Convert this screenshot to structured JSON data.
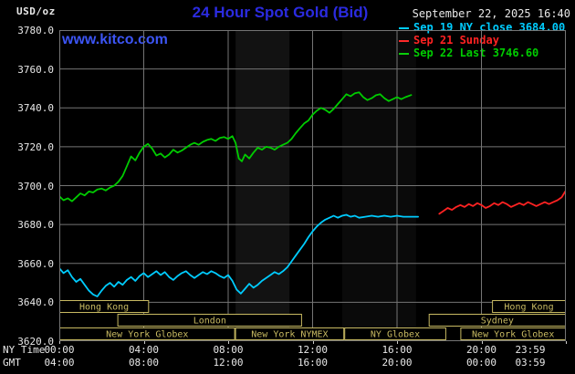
{
  "header": {
    "unit_label": "USD/oz",
    "title": "24 Hour Spot Gold (Bid)",
    "datetime": "September 22, 2025 16:40",
    "watermark": "www.kitco.com"
  },
  "legend": {
    "items": [
      {
        "label": "Sep 19 NY close 3684.00",
        "color": "#00ccff"
      },
      {
        "label": "Sep 21 Sunday",
        "color": "#ff2222"
      },
      {
        "label": "Sep 22 Last 3746.60",
        "color": "#00cc00"
      }
    ]
  },
  "axes": {
    "ny_time_label": "NY Time",
    "gmt_label": "GMT"
  },
  "colors": {
    "grid_grey": "#757575",
    "session_khaki": "#c8ba62",
    "title_blue": "#2b2be0",
    "watermark_blue": "#3c55f5",
    "axis_text": "#e8e8e8",
    "background": "#000000"
  },
  "chart_data": {
    "type": "line",
    "title": "24 Hour Spot Gold (Bid)",
    "x_unit": "NY time (hours)",
    "xlim": [
      0,
      24
    ],
    "ylim": [
      3620,
      3780
    ],
    "x_gridline_hours": [
      0,
      4,
      8,
      12,
      16,
      20,
      24
    ],
    "x_tick_labels_ny": [
      "00:00",
      "04:00",
      "08:00",
      "12:00",
      "16:00",
      "20:00",
      "23:59"
    ],
    "x_tick_labels_gmt": [
      "04:00",
      "08:00",
      "12:00",
      "16:00",
      "20:00",
      "00:00",
      "03:59"
    ],
    "y_gridlines": [
      3620,
      3640,
      3660,
      3680,
      3700,
      3720,
      3740,
      3760,
      3780
    ],
    "y_tick_labels": [
      "3780.0",
      "3760.0",
      "3740.0",
      "3720.0",
      "3700.0",
      "3680.0",
      "3660.0",
      "3640.0",
      "3620.0"
    ],
    "series": [
      {
        "name": "Sep 19 NY close 3684.00",
        "color": "#00ccff",
        "points": [
          [
            0,
            3657.5
          ],
          [
            0.2,
            3655
          ],
          [
            0.4,
            3656.5
          ],
          [
            0.6,
            3653
          ],
          [
            0.8,
            3650.5
          ],
          [
            1,
            3652
          ],
          [
            1.2,
            3649
          ],
          [
            1.4,
            3646
          ],
          [
            1.6,
            3644
          ],
          [
            1.8,
            3643
          ],
          [
            2,
            3646
          ],
          [
            2.2,
            3648.5
          ],
          [
            2.4,
            3650
          ],
          [
            2.6,
            3648
          ],
          [
            2.8,
            3650.5
          ],
          [
            3,
            3649
          ],
          [
            3.2,
            3651.5
          ],
          [
            3.4,
            3653
          ],
          [
            3.6,
            3651
          ],
          [
            3.8,
            3653.5
          ],
          [
            4,
            3655
          ],
          [
            4.2,
            3653
          ],
          [
            4.4,
            3654.5
          ],
          [
            4.6,
            3656
          ],
          [
            4.8,
            3654
          ],
          [
            5,
            3655.5
          ],
          [
            5.2,
            3653
          ],
          [
            5.4,
            3651.5
          ],
          [
            5.6,
            3653.5
          ],
          [
            5.8,
            3655
          ],
          [
            6,
            3656
          ],
          [
            6.2,
            3654
          ],
          [
            6.4,
            3652.5
          ],
          [
            6.6,
            3654
          ],
          [
            6.8,
            3655.5
          ],
          [
            7,
            3654.5
          ],
          [
            7.2,
            3656
          ],
          [
            7.4,
            3655
          ],
          [
            7.6,
            3653.5
          ],
          [
            7.8,
            3652.5
          ],
          [
            8,
            3654
          ],
          [
            8.2,
            3651
          ],
          [
            8.4,
            3646.5
          ],
          [
            8.6,
            3644.5
          ],
          [
            8.8,
            3647
          ],
          [
            9,
            3649.5
          ],
          [
            9.2,
            3647.5
          ],
          [
            9.4,
            3649
          ],
          [
            9.6,
            3651
          ],
          [
            9.8,
            3652.5
          ],
          [
            10,
            3654
          ],
          [
            10.2,
            3655.5
          ],
          [
            10.4,
            3654.5
          ],
          [
            10.6,
            3656
          ],
          [
            10.8,
            3658
          ],
          [
            11,
            3661
          ],
          [
            11.2,
            3664
          ],
          [
            11.4,
            3667
          ],
          [
            11.6,
            3670
          ],
          [
            11.8,
            3673.5
          ],
          [
            12,
            3676.5
          ],
          [
            12.2,
            3679
          ],
          [
            12.4,
            3681
          ],
          [
            12.6,
            3682.5
          ],
          [
            12.8,
            3683.5
          ],
          [
            13,
            3684.5
          ],
          [
            13.2,
            3683.5
          ],
          [
            13.4,
            3684.5
          ],
          [
            13.6,
            3685
          ],
          [
            13.8,
            3684
          ],
          [
            14,
            3684.5
          ],
          [
            14.2,
            3683.5
          ],
          [
            14.5,
            3684
          ],
          [
            14.8,
            3684.5
          ],
          [
            15.1,
            3684
          ],
          [
            15.4,
            3684.5
          ],
          [
            15.7,
            3684
          ],
          [
            16,
            3684.5
          ],
          [
            16.3,
            3684
          ],
          [
            16.6,
            3684
          ],
          [
            17,
            3684
          ]
        ]
      },
      {
        "name": "Sep 21 Sunday",
        "color": "#ff2222",
        "points": [
          [
            18,
            3685.5
          ],
          [
            18.2,
            3687
          ],
          [
            18.4,
            3688.5
          ],
          [
            18.6,
            3687.5
          ],
          [
            18.8,
            3689
          ],
          [
            19,
            3690
          ],
          [
            19.2,
            3689
          ],
          [
            19.4,
            3690.5
          ],
          [
            19.6,
            3689.5
          ],
          [
            19.8,
            3691
          ],
          [
            20,
            3690
          ],
          [
            20.2,
            3688.5
          ],
          [
            20.4,
            3689.5
          ],
          [
            20.6,
            3691
          ],
          [
            20.8,
            3690
          ],
          [
            21,
            3691.5
          ],
          [
            21.2,
            3690.5
          ],
          [
            21.4,
            3689
          ],
          [
            21.6,
            3690
          ],
          [
            21.8,
            3691
          ],
          [
            22,
            3690
          ],
          [
            22.2,
            3691.5
          ],
          [
            22.4,
            3690.5
          ],
          [
            22.6,
            3689.5
          ],
          [
            22.8,
            3690.5
          ],
          [
            23,
            3691.5
          ],
          [
            23.2,
            3690.5
          ],
          [
            23.4,
            3691.5
          ],
          [
            23.6,
            3692.5
          ],
          [
            23.8,
            3694
          ],
          [
            23.97,
            3697
          ]
        ]
      },
      {
        "name": "Sep 22 Last 3746.60",
        "color": "#00cc00",
        "points": [
          [
            0,
            3694.5
          ],
          [
            0.2,
            3692.5
          ],
          [
            0.4,
            3693.5
          ],
          [
            0.6,
            3692
          ],
          [
            0.8,
            3694
          ],
          [
            1,
            3696
          ],
          [
            1.2,
            3695
          ],
          [
            1.4,
            3697
          ],
          [
            1.6,
            3696.5
          ],
          [
            1.8,
            3698
          ],
          [
            2,
            3698.5
          ],
          [
            2.2,
            3697.5
          ],
          [
            2.4,
            3699
          ],
          [
            2.6,
            3700
          ],
          [
            2.8,
            3702
          ],
          [
            3,
            3705
          ],
          [
            3.2,
            3710
          ],
          [
            3.4,
            3715
          ],
          [
            3.6,
            3713
          ],
          [
            3.8,
            3717
          ],
          [
            4,
            3720
          ],
          [
            4.2,
            3721.5
          ],
          [
            4.4,
            3719
          ],
          [
            4.6,
            3715.5
          ],
          [
            4.8,
            3716.5
          ],
          [
            5,
            3714.5
          ],
          [
            5.2,
            3716
          ],
          [
            5.4,
            3718.5
          ],
          [
            5.6,
            3717
          ],
          [
            5.8,
            3718
          ],
          [
            6,
            3719.5
          ],
          [
            6.2,
            3721
          ],
          [
            6.4,
            3722
          ],
          [
            6.6,
            3721
          ],
          [
            6.8,
            3722.5
          ],
          [
            7,
            3723.5
          ],
          [
            7.2,
            3724
          ],
          [
            7.4,
            3723
          ],
          [
            7.6,
            3724.5
          ],
          [
            7.8,
            3725
          ],
          [
            8,
            3724
          ],
          [
            8.2,
            3725.5
          ],
          [
            8.35,
            3722
          ],
          [
            8.5,
            3714
          ],
          [
            8.65,
            3712.5
          ],
          [
            8.8,
            3716
          ],
          [
            9,
            3714
          ],
          [
            9.2,
            3717
          ],
          [
            9.4,
            3719.5
          ],
          [
            9.6,
            3718.5
          ],
          [
            9.8,
            3720
          ],
          [
            10,
            3719.5
          ],
          [
            10.2,
            3718.5
          ],
          [
            10.4,
            3720
          ],
          [
            10.6,
            3721
          ],
          [
            10.8,
            3722
          ],
          [
            11,
            3724
          ],
          [
            11.2,
            3727
          ],
          [
            11.4,
            3729.5
          ],
          [
            11.6,
            3732
          ],
          [
            11.8,
            3733.5
          ],
          [
            12,
            3736.5
          ],
          [
            12.2,
            3738.5
          ],
          [
            12.4,
            3740
          ],
          [
            12.6,
            3739
          ],
          [
            12.8,
            3737.5
          ],
          [
            13,
            3739.5
          ],
          [
            13.2,
            3742
          ],
          [
            13.4,
            3744.5
          ],
          [
            13.6,
            3747
          ],
          [
            13.8,
            3746
          ],
          [
            14,
            3747.5
          ],
          [
            14.2,
            3748
          ],
          [
            14.4,
            3745.5
          ],
          [
            14.6,
            3744
          ],
          [
            14.8,
            3745
          ],
          [
            15,
            3746.5
          ],
          [
            15.2,
            3747
          ],
          [
            15.4,
            3745
          ],
          [
            15.6,
            3743.5
          ],
          [
            15.8,
            3744.5
          ],
          [
            16,
            3745.5
          ],
          [
            16.2,
            3744.5
          ],
          [
            16.4,
            3745.5
          ],
          [
            16.67,
            3746.6
          ]
        ]
      }
    ],
    "market_sessions": [
      {
        "label": "Hong Kong",
        "row": 0,
        "start": 0,
        "end": 4.25
      },
      {
        "label": "Hong Kong",
        "row": 0,
        "start": 20.5,
        "end": 24
      },
      {
        "label": "London",
        "row": 1,
        "start": 2.75,
        "end": 11.5
      },
      {
        "label": "Sydney",
        "row": 1,
        "start": 17.5,
        "end": 24
      },
      {
        "label": "New York Globex",
        "row": 2,
        "start": 0,
        "end": 8.33
      },
      {
        "label": "New York NYMEX",
        "row": 2,
        "start": 8.33,
        "end": 13.5
      },
      {
        "label": "NY Globex",
        "row": 2,
        "start": 13.5,
        "end": 18.33
      },
      {
        "label": "New York Globex",
        "row": 2,
        "start": 19,
        "end": 24
      }
    ],
    "shaded_regions": [
      {
        "start": 8.35,
        "end": 10.9,
        "opacity": 0.07
      },
      {
        "start": 13.4,
        "end": 16.9,
        "opacity": 0.04
      }
    ]
  }
}
